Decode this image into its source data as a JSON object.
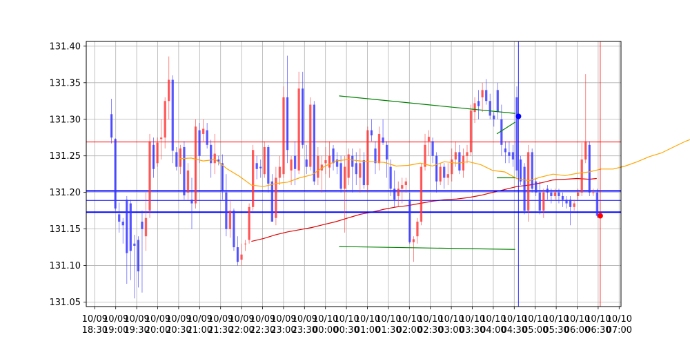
{
  "chart_data": {
    "type": "candlestick",
    "title": "",
    "xlabel": "",
    "ylabel": "",
    "ylim": [
      131.04,
      131.405
    ],
    "grid": true,
    "y_ticks": [
      "131.05",
      "131.10",
      "131.15",
      "131.20",
      "131.25",
      "131.30",
      "131.35",
      "131.40"
    ],
    "x_ticks": [
      {
        "date": "10/09",
        "time": "18:30"
      },
      {
        "date": "10/09",
        "time": "19:00"
      },
      {
        "date": "10/09",
        "time": "19:30"
      },
      {
        "date": "10/09",
        "time": "20:00"
      },
      {
        "date": "10/09",
        "time": "20:30"
      },
      {
        "date": "10/09",
        "time": "21:00"
      },
      {
        "date": "10/09",
        "time": "21:30"
      },
      {
        "date": "10/09",
        "time": "22:00"
      },
      {
        "date": "10/09",
        "time": "22:30"
      },
      {
        "date": "10/09",
        "time": "23:00"
      },
      {
        "date": "10/09",
        "time": "23:30"
      },
      {
        "date": "10/10",
        "time": "00:00"
      },
      {
        "date": "10/10",
        "time": "00:30"
      },
      {
        "date": "10/10",
        "time": "01:00"
      },
      {
        "date": "10/10",
        "time": "01:30"
      },
      {
        "date": "10/10",
        "time": "02:00"
      },
      {
        "date": "10/10",
        "time": "02:30"
      },
      {
        "date": "10/10",
        "time": "03:00"
      },
      {
        "date": "10/10",
        "time": "03:30"
      },
      {
        "date": "10/10",
        "time": "04:00"
      },
      {
        "date": "10/10",
        "time": "04:30"
      },
      {
        "date": "10/10",
        "time": "05:00"
      },
      {
        "date": "10/10",
        "time": "05:30"
      },
      {
        "date": "10/10",
        "time": "06:00"
      },
      {
        "date": "10/10",
        "time": "06:30"
      },
      {
        "date": "10/10",
        "time": "07:00"
      }
    ],
    "colors": {
      "up": "#ff3333",
      "down": "#3333ff",
      "ma_short": "#ffa500",
      "ma_long": "#dd0000",
      "trend": "#008000",
      "hline_red": "#ff0000",
      "hline_blue": "#0000ff",
      "grid": "#b0b0b0"
    },
    "candles": [
      [
        131.307,
        131.328,
        131.267,
        131.275
      ],
      [
        131.273,
        131.274,
        131.175,
        131.178
      ],
      [
        131.17,
        131.186,
        131.145,
        131.16
      ],
      [
        131.16,
        131.165,
        131.13,
        131.155
      ],
      [
        131.19,
        131.195,
        131.075,
        131.117
      ],
      [
        131.185,
        131.19,
        131.08,
        131.12
      ],
      [
        131.13,
        131.142,
        131.055,
        131.127
      ],
      [
        131.135,
        131.14,
        131.07,
        131.092
      ],
      [
        131.16,
        131.175,
        131.063,
        131.15
      ],
      [
        131.14,
        131.2,
        131.12,
        131.165
      ],
      [
        131.175,
        131.28,
        131.165,
        131.27
      ],
      [
        131.265,
        131.275,
        131.22,
        131.232
      ],
      [
        131.24,
        131.275,
        131.235,
        131.268
      ],
      [
        131.273,
        131.3,
        131.245,
        131.275
      ],
      [
        131.275,
        131.33,
        131.26,
        131.325
      ],
      [
        131.325,
        131.386,
        131.3,
        131.354
      ],
      [
        131.354,
        131.36,
        131.24,
        131.257
      ],
      [
        131.255,
        131.262,
        131.23,
        131.235
      ],
      [
        131.235,
        131.265,
        131.225,
        131.26
      ],
      [
        131.262,
        131.27,
        131.19,
        131.196
      ],
      [
        131.2,
        131.24,
        131.19,
        131.23
      ],
      [
        131.19,
        131.22,
        131.15,
        131.185
      ],
      [
        131.185,
        131.3,
        131.178,
        131.29
      ],
      [
        131.285,
        131.295,
        131.24,
        131.25
      ],
      [
        131.28,
        131.3,
        131.27,
        131.287
      ],
      [
        131.285,
        131.295,
        131.26,
        131.265
      ],
      [
        131.265,
        131.272,
        131.22,
        131.24
      ],
      [
        131.24,
        131.28,
        131.225,
        131.253
      ],
      [
        131.245,
        131.25,
        131.237,
        131.242
      ],
      [
        131.24,
        131.252,
        131.19,
        131.202
      ],
      [
        131.2,
        131.225,
        131.14,
        131.15
      ],
      [
        131.15,
        131.19,
        131.138,
        131.175
      ],
      [
        131.175,
        131.178,
        131.12,
        131.125
      ],
      [
        131.125,
        131.14,
        131.1,
        131.105
      ],
      [
        131.108,
        131.13,
        131.1,
        131.115
      ],
      [
        131.13,
        131.135,
        131.12,
        131.13
      ],
      [
        131.135,
        131.185,
        131.13,
        131.18
      ],
      [
        131.18,
        131.265,
        131.175,
        131.258
      ],
      [
        131.24,
        131.25,
        131.218,
        131.232
      ],
      [
        131.235,
        131.245,
        131.22,
        131.233
      ],
      [
        131.225,
        131.27,
        131.22,
        131.262
      ],
      [
        131.262,
        131.265,
        131.2,
        131.212
      ],
      [
        131.215,
        131.225,
        131.16,
        131.16
      ],
      [
        131.165,
        131.235,
        131.155,
        131.22
      ],
      [
        131.22,
        131.25,
        131.21,
        131.235
      ],
      [
        131.225,
        131.345,
        131.22,
        131.33
      ],
      [
        131.33,
        131.387,
        131.24,
        131.258
      ],
      [
        131.23,
        131.25,
        131.21,
        131.245
      ],
      [
        131.25,
        131.27,
        131.21,
        131.232
      ],
      [
        131.23,
        131.365,
        131.225,
        131.342
      ],
      [
        131.342,
        131.365,
        131.26,
        131.265
      ],
      [
        131.245,
        131.265,
        131.225,
        131.235
      ],
      [
        131.235,
        131.33,
        131.23,
        131.32
      ],
      [
        131.32,
        131.325,
        131.21,
        131.215
      ],
      [
        131.22,
        131.262,
        131.21,
        131.25
      ],
      [
        131.23,
        131.25,
        131.2,
        131.238
      ],
      [
        131.24,
        131.262,
        131.225,
        131.244
      ],
      [
        131.234,
        131.27,
        131.22,
        131.25
      ],
      [
        131.26,
        131.265,
        131.23,
        131.24
      ],
      [
        131.245,
        131.255,
        131.225,
        131.235
      ],
      [
        131.24,
        131.25,
        131.2,
        131.205
      ],
      [
        131.205,
        131.25,
        131.145,
        131.235
      ],
      [
        131.22,
        131.26,
        131.21,
        131.252
      ],
      [
        131.25,
        131.26,
        131.2,
        131.235
      ],
      [
        131.24,
        131.255,
        131.21,
        131.225
      ],
      [
        131.22,
        131.26,
        131.2,
        131.24
      ],
      [
        131.244,
        131.255,
        131.205,
        131.21
      ],
      [
        131.21,
        131.29,
        131.2,
        131.285
      ],
      [
        131.285,
        131.3,
        131.27,
        131.278
      ],
      [
        131.26,
        131.27,
        131.225,
        131.24
      ],
      [
        131.24,
        131.29,
        131.23,
        131.28
      ],
      [
        131.275,
        131.3,
        131.265,
        131.268
      ],
      [
        131.265,
        131.27,
        131.22,
        131.245
      ],
      [
        131.235,
        131.245,
        131.195,
        131.205
      ],
      [
        131.205,
        131.23,
        131.18,
        131.19
      ],
      [
        131.195,
        131.215,
        131.18,
        131.205
      ],
      [
        131.205,
        131.22,
        131.185,
        131.21
      ],
      [
        131.21,
        131.22,
        131.2,
        131.215
      ],
      [
        131.19,
        131.2,
        131.13,
        131.132
      ],
      [
        131.132,
        131.14,
        131.105,
        131.136
      ],
      [
        131.14,
        131.165,
        131.13,
        131.16
      ],
      [
        131.16,
        131.24,
        131.155,
        131.235
      ],
      [
        131.235,
        131.28,
        131.23,
        131.265
      ],
      [
        131.27,
        131.285,
        131.25,
        131.276
      ],
      [
        131.27,
        131.275,
        131.24,
        131.25
      ],
      [
        131.25,
        131.255,
        131.2,
        131.215
      ],
      [
        131.215,
        131.24,
        131.21,
        131.235
      ],
      [
        131.235,
        131.24,
        131.205,
        131.22
      ],
      [
        131.22,
        131.24,
        131.21,
        131.225
      ],
      [
        131.225,
        131.26,
        131.215,
        131.245
      ],
      [
        131.245,
        131.27,
        131.235,
        131.255
      ],
      [
        131.255,
        131.265,
        131.225,
        131.23
      ],
      [
        131.23,
        131.26,
        131.22,
        131.25
      ],
      [
        131.25,
        131.265,
        131.24,
        131.255
      ],
      [
        131.255,
        131.32,
        131.25,
        131.312
      ],
      [
        131.31,
        131.33,
        131.295,
        131.322
      ],
      [
        131.325,
        131.34,
        131.3,
        131.318
      ],
      [
        131.33,
        131.35,
        131.31,
        131.34
      ],
      [
        131.34,
        131.355,
        131.32,
        131.325
      ],
      [
        131.325,
        131.335,
        131.3,
        131.305
      ],
      [
        131.305,
        131.31,
        131.29,
        131.3
      ],
      [
        131.34,
        131.35,
        131.3,
        131.31
      ],
      [
        131.3,
        131.32,
        131.25,
        131.265
      ],
      [
        131.26,
        131.27,
        131.24,
        131.255
      ],
      [
        131.255,
        131.27,
        131.24,
        131.25
      ],
      [
        131.255,
        131.265,
        131.235,
        131.245
      ],
      [
        131.33,
        131.345,
        131.22,
        131.23
      ],
      [
        131.245,
        131.25,
        131.21,
        131.215
      ],
      [
        131.235,
        131.24,
        131.17,
        131.175
      ],
      [
        131.175,
        131.265,
        131.16,
        131.255
      ],
      [
        131.255,
        131.26,
        131.2,
        131.205
      ],
      [
        131.215,
        131.22,
        131.195,
        131.2
      ],
      [
        131.2,
        131.215,
        131.17,
        131.175
      ],
      [
        131.175,
        131.205,
        131.165,
        131.2
      ],
      [
        131.205,
        131.21,
        131.19,
        131.2
      ],
      [
        131.2,
        131.205,
        131.185,
        131.195
      ],
      [
        131.195,
        131.205,
        131.19,
        131.2
      ],
      [
        131.2,
        131.205,
        131.185,
        131.195
      ],
      [
        131.195,
        131.2,
        131.18,
        131.19
      ],
      [
        131.19,
        131.195,
        131.178,
        131.185
      ],
      [
        131.19,
        131.195,
        131.155,
        131.18
      ],
      [
        131.18,
        131.19,
        131.175,
        131.185
      ],
      [
        131.195,
        131.205,
        131.19,
        131.2
      ],
      [
        131.2,
        131.268,
        131.195,
        131.245
      ],
      [
        131.245,
        131.362,
        131.24,
        131.27
      ],
      [
        131.265,
        131.27,
        131.195,
        131.2
      ],
      [
        131.2,
        131.205,
        131.195,
        131.2
      ],
      [
        131.2,
        131.205,
        131.165,
        131.168
      ]
    ],
    "ma_short": [
      [
        131.246,
        4.03
      ],
      [
        131.247,
        4.6
      ],
      [
        131.243,
        5.17
      ],
      [
        131.245,
        5.75
      ],
      [
        131.232,
        6.32
      ],
      [
        131.222,
        6.9
      ],
      [
        131.21,
        7.47
      ],
      [
        131.208,
        8.05
      ],
      [
        131.212,
        8.62
      ],
      [
        131.214,
        9.2
      ],
      [
        131.22,
        9.77
      ],
      [
        131.224,
        10.35
      ],
      [
        131.235,
        10.92
      ],
      [
        131.243,
        11.5
      ],
      [
        131.245,
        12.07
      ],
      [
        131.243,
        12.65
      ],
      [
        131.242,
        13.22
      ],
      [
        131.241,
        13.8
      ],
      [
        131.236,
        14.37
      ],
      [
        131.237,
        14.95
      ],
      [
        131.24,
        15.52
      ],
      [
        131.236,
        16.1
      ],
      [
        131.242,
        16.67
      ],
      [
        131.24,
        17.25
      ],
      [
        131.242,
        17.82
      ],
      [
        131.238,
        18.4
      ],
      [
        131.23,
        18.97
      ],
      [
        131.228,
        19.55
      ],
      [
        131.219,
        20.12
      ],
      [
        131.216,
        20.7
      ],
      [
        131.221,
        21.27
      ],
      [
        131.225,
        21.85
      ],
      [
        131.223,
        22.42
      ],
      [
        131.226,
        22.99
      ],
      [
        131.228,
        23.57
      ],
      [
        131.232,
        24.14
      ],
      [
        131.232,
        24.72
      ],
      [
        131.236,
        25.29
      ],
      [
        131.242,
        25.87
      ],
      [
        131.249,
        26.44
      ],
      [
        131.254,
        27.02
      ],
      [
        131.262,
        27.59
      ],
      [
        131.27,
        28.17
      ],
      [
        131.276,
        28.74
      ],
      [
        131.279,
        29.32
      ],
      [
        131.281,
        29.89
      ],
      [
        131.28,
        30.47
      ],
      [
        131.279,
        31.04
      ],
      [
        131.278,
        31.62
      ],
      [
        131.281,
        32.19
      ],
      [
        131.288,
        32.77
      ],
      [
        131.279,
        33.34
      ],
      [
        131.273,
        33.92
      ]
    ],
    "ma_long": [
      [
        131.133,
        7.47
      ],
      [
        131.137,
        8.05
      ],
      [
        131.142,
        8.62
      ],
      [
        131.146,
        9.2
      ],
      [
        131.149,
        9.77
      ],
      [
        131.152,
        10.35
      ],
      [
        131.156,
        10.92
      ],
      [
        131.16,
        11.5
      ],
      [
        131.165,
        12.07
      ],
      [
        131.17,
        12.65
      ],
      [
        131.173,
        13.22
      ],
      [
        131.177,
        13.8
      ],
      [
        131.18,
        14.37
      ],
      [
        131.182,
        14.95
      ],
      [
        131.185,
        15.52
      ],
      [
        131.188,
        16.1
      ],
      [
        131.19,
        16.67
      ],
      [
        131.191,
        17.25
      ],
      [
        131.193,
        17.82
      ],
      [
        131.196,
        18.4
      ],
      [
        131.2,
        18.97
      ],
      [
        131.204,
        19.55
      ],
      [
        131.208,
        20.12
      ],
      [
        131.21,
        20.7
      ],
      [
        131.213,
        21.27
      ],
      [
        131.217,
        21.85
      ],
      [
        131.218,
        22.42
      ],
      [
        131.219,
        22.99
      ],
      [
        131.218,
        23.57
      ],
      [
        131.219,
        23.93
      ]
    ],
    "hlines": [
      {
        "y": 131.269,
        "color": "red",
        "width": 1
      },
      {
        "y": 131.202,
        "color": "blue",
        "width": 2
      },
      {
        "y": 131.189,
        "color": "blue",
        "width": 1
      },
      {
        "y": 131.173,
        "color": "blue",
        "width": 2
      }
    ],
    "trendlines": [
      {
        "x": [
          11.65,
          20.04
        ],
        "y": [
          131.332,
          131.308
        ]
      },
      {
        "x": [
          11.65,
          20.04
        ],
        "y": [
          131.126,
          131.122
        ]
      },
      {
        "x": [
          19.17,
          20.04
        ],
        "y": [
          131.28,
          131.296
        ]
      },
      {
        "x": [
          19.17,
          20.04
        ],
        "y": [
          131.22,
          131.22
        ]
      }
    ],
    "vlines": [
      {
        "x": 20.2,
        "color": "blue"
      },
      {
        "x": 24.1,
        "color": "red"
      }
    ],
    "markers": [
      {
        "x": 20.2,
        "y": 131.304,
        "color": "blue"
      },
      {
        "x": 24.1,
        "y": 131.168,
        "color": "red"
      }
    ]
  }
}
